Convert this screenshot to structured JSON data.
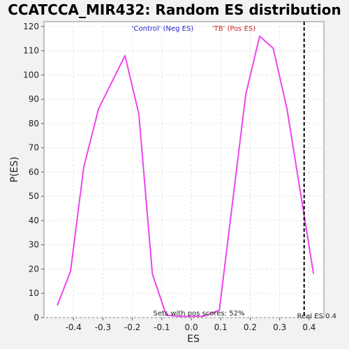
{
  "chart_data": {
    "type": "line",
    "title": "CCATCCA_MIR432: Random ES distribution",
    "xlabel": "ES",
    "ylabel": "P(ES)",
    "xlim": [
      -0.5,
      0.45
    ],
    "ylim": [
      0,
      122
    ],
    "x_ticks": [
      -0.4,
      -0.3,
      -0.2,
      -0.1,
      0.0,
      0.1,
      0.2,
      0.3,
      0.4
    ],
    "x_tick_labels": [
      "-0.4",
      "-0.3",
      "-0.2",
      "-0.1",
      "0.0",
      "0.1",
      "0.2",
      "0.3",
      "0.4"
    ],
    "y_ticks": [
      0,
      10,
      20,
      30,
      40,
      50,
      60,
      70,
      80,
      90,
      100,
      110,
      120
    ],
    "y_tick_labels": [
      "0",
      "10",
      "20",
      "30",
      "40",
      "50",
      "60",
      "70",
      "80",
      "90",
      "100",
      "110",
      "120"
    ],
    "grid": true,
    "series": [
      {
        "color": "#ee44ee",
        "points": [
          [
            -0.455,
            5
          ],
          [
            -0.41,
            19
          ],
          [
            -0.365,
            62
          ],
          [
            -0.315,
            86
          ],
          [
            -0.225,
            108
          ],
          [
            -0.178,
            84
          ],
          [
            -0.132,
            18
          ],
          [
            -0.085,
            1
          ],
          [
            -0.04,
            0.5
          ],
          [
            0.0,
            0.5
          ],
          [
            0.04,
            0.5
          ],
          [
            0.095,
            3
          ],
          [
            0.185,
            92
          ],
          [
            0.232,
            116
          ],
          [
            0.278,
            111
          ],
          [
            0.325,
            86
          ],
          [
            0.37,
            52
          ],
          [
            0.415,
            18
          ]
        ]
      }
    ],
    "legend": {
      "placement": "top-center",
      "entries": [
        {
          "label": "'Control' (Neg ES)",
          "color": "#2222cc"
        },
        {
          "label": "'TB' (Pos ES)",
          "color": "#cc2222"
        }
      ]
    },
    "real_es": {
      "value": 0.383,
      "label": "Real ES 0.4"
    },
    "annotation": "Sets with pos scores: 52%"
  }
}
